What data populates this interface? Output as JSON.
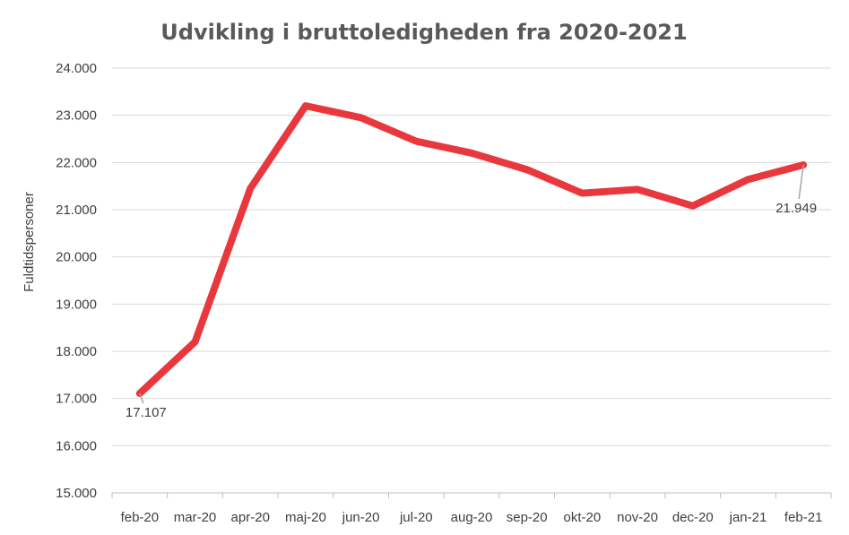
{
  "chart_data": {
    "type": "line",
    "title": "Udvikling i bruttoledigheden fra 2020-2021",
    "xlabel": "",
    "ylabel": "Fuldtidspersoner",
    "categories": [
      "feb-20",
      "mar-20",
      "apr-20",
      "maj-20",
      "jun-20",
      "jul-20",
      "aug-20",
      "sep-20",
      "okt-20",
      "nov-20",
      "dec-20",
      "jan-21",
      "feb-21"
    ],
    "series": [
      {
        "values": [
          17107,
          18200,
          21450,
          23200,
          22950,
          22450,
          22200,
          21850,
          21350,
          21430,
          21080,
          21640,
          21949
        ],
        "color": "#e8383d"
      }
    ],
    "ylim": [
      15000,
      24000
    ],
    "yticks": [
      "15.000",
      "16.000",
      "17.000",
      "18.000",
      "19.000",
      "20.000",
      "21.000",
      "22.000",
      "23.000",
      "24.000"
    ],
    "data_labels": [
      {
        "index": 0,
        "text": "17.107"
      },
      {
        "index": 12,
        "text": "21.949"
      }
    ],
    "grid": true,
    "legend": "none"
  }
}
